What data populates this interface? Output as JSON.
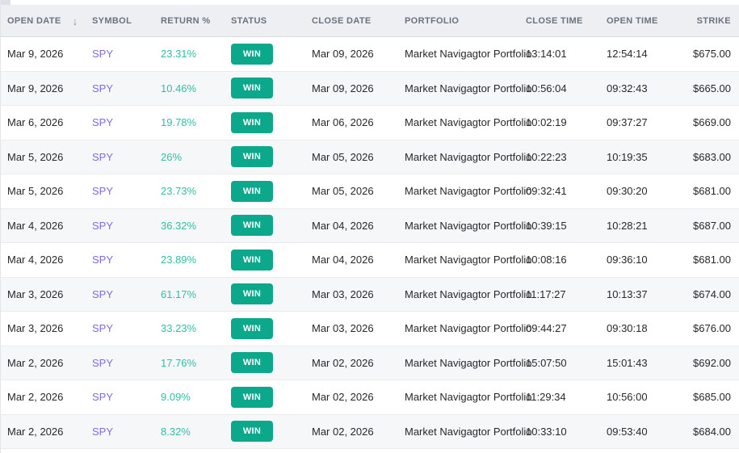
{
  "colors": {
    "header_bg": "#edeff2",
    "accent_teal": "#0ca88c",
    "return_teal": "#2fc0a6",
    "symbol_purple": "#7a6cec",
    "row_alt_bg": "#f6f7f8"
  },
  "icons": {
    "sort_desc_icon": "↓"
  },
  "table": {
    "columns": [
      {
        "key": "open_date",
        "label": "OPEN DATE",
        "sorted_desc": true
      },
      {
        "key": "symbol",
        "label": "SYMBOL"
      },
      {
        "key": "return_pct",
        "label": "RETURN %"
      },
      {
        "key": "status",
        "label": "STATUS"
      },
      {
        "key": "close_date",
        "label": "CLOSE DATE"
      },
      {
        "key": "portfolio",
        "label": "PORTFOLIO"
      },
      {
        "key": "close_time",
        "label": "CLOSE TIME"
      },
      {
        "key": "open_time",
        "label": "OPEN TIME"
      },
      {
        "key": "strike",
        "label": "STRIKE"
      }
    ],
    "rows": [
      {
        "open_date": "Mar 9, 2026",
        "symbol": "SPY",
        "return_pct": "23.31%",
        "status": "WIN",
        "close_date": "Mar 09, 2026",
        "portfolio": "Market Navigagtor Portfolio",
        "close_time": "13:14:01",
        "open_time": "12:54:14",
        "strike": "$675.00"
      },
      {
        "open_date": "Mar 9, 2026",
        "symbol": "SPY",
        "return_pct": "10.46%",
        "status": "WIN",
        "close_date": "Mar 09, 2026",
        "portfolio": "Market Navigagtor Portfolio",
        "close_time": "10:56:04",
        "open_time": "09:32:43",
        "strike": "$665.00"
      },
      {
        "open_date": "Mar 6, 2026",
        "symbol": "SPY",
        "return_pct": "19.78%",
        "status": "WIN",
        "close_date": "Mar 06, 2026",
        "portfolio": "Market Navigagtor Portfolio",
        "close_time": "10:02:19",
        "open_time": "09:37:27",
        "strike": "$669.00"
      },
      {
        "open_date": "Mar 5, 2026",
        "symbol": "SPY",
        "return_pct": "26%",
        "status": "WIN",
        "close_date": "Mar 05, 2026",
        "portfolio": "Market Navigagtor Portfolio",
        "close_time": "10:22:23",
        "open_time": "10:19:35",
        "strike": "$683.00"
      },
      {
        "open_date": "Mar 5, 2026",
        "symbol": "SPY",
        "return_pct": "23.73%",
        "status": "WIN",
        "close_date": "Mar 05, 2026",
        "portfolio": "Market Navigagtor Portfolio",
        "close_time": "09:32:41",
        "open_time": "09:30:20",
        "strike": "$681.00"
      },
      {
        "open_date": "Mar 4, 2026",
        "symbol": "SPY",
        "return_pct": "36.32%",
        "status": "WIN",
        "close_date": "Mar 04, 2026",
        "portfolio": "Market Navigagtor Portfolio",
        "close_time": "10:39:15",
        "open_time": "10:28:21",
        "strike": "$687.00"
      },
      {
        "open_date": "Mar 4, 2026",
        "symbol": "SPY",
        "return_pct": "23.89%",
        "status": "WIN",
        "close_date": "Mar 04, 2026",
        "portfolio": "Market Navigagtor Portfolio",
        "close_time": "10:08:16",
        "open_time": "09:36:10",
        "strike": "$681.00"
      },
      {
        "open_date": "Mar 3, 2026",
        "symbol": "SPY",
        "return_pct": "61.17%",
        "status": "WIN",
        "close_date": "Mar 03, 2026",
        "portfolio": "Market Navigagtor Portfolio",
        "close_time": "11:17:27",
        "open_time": "10:13:37",
        "strike": "$674.00"
      },
      {
        "open_date": "Mar 3, 2026",
        "symbol": "SPY",
        "return_pct": "33.23%",
        "status": "WIN",
        "close_date": "Mar 03, 2026",
        "portfolio": "Market Navigagtor Portfolio",
        "close_time": "09:44:27",
        "open_time": "09:30:18",
        "strike": "$676.00"
      },
      {
        "open_date": "Mar 2, 2026",
        "symbol": "SPY",
        "return_pct": "17.76%",
        "status": "WIN",
        "close_date": "Mar 02, 2026",
        "portfolio": "Market Navigagtor Portfolio",
        "close_time": "15:07:50",
        "open_time": "15:01:43",
        "strike": "$692.00"
      },
      {
        "open_date": "Mar 2, 2026",
        "symbol": "SPY",
        "return_pct": "9.09%",
        "status": "WIN",
        "close_date": "Mar 02, 2026",
        "portfolio": "Market Navigagtor Portfolio",
        "close_time": "11:29:34",
        "open_time": "10:56:00",
        "strike": "$685.00"
      },
      {
        "open_date": "Mar 2, 2026",
        "symbol": "SPY",
        "return_pct": "8.32%",
        "status": "WIN",
        "close_date": "Mar 02, 2026",
        "portfolio": "Market Navigagtor Portfolio",
        "close_time": "10:33:10",
        "open_time": "09:53:40",
        "strike": "$684.00"
      }
    ]
  }
}
